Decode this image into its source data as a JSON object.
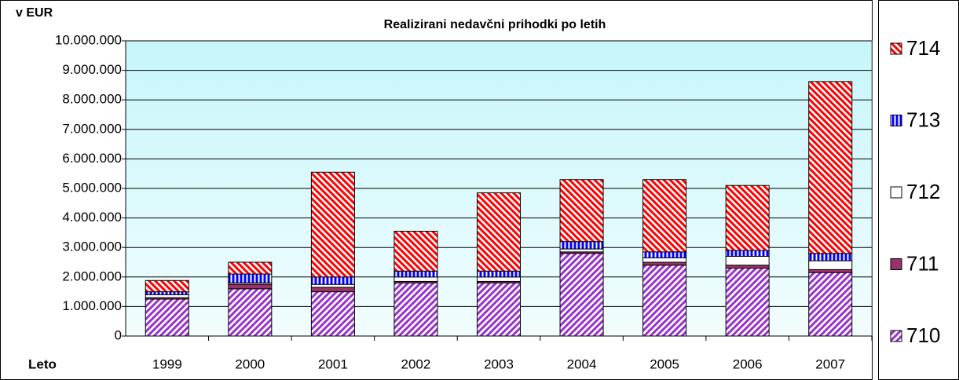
{
  "chart_data": {
    "type": "stacked-bar",
    "title": "Realizirani nedavčni prihodki po letih",
    "y_label": "v EUR",
    "x_label": "Leto",
    "categories": [
      "1999",
      "2000",
      "2001",
      "2002",
      "2003",
      "2004",
      "2005",
      "2006",
      "2007"
    ],
    "series": [
      {
        "name": "710",
        "color": "#9933cc",
        "pattern": "diagonal-up",
        "values": [
          1250000,
          1600000,
          1500000,
          1800000,
          1800000,
          2800000,
          2400000,
          2300000,
          2150000
        ]
      },
      {
        "name": "711",
        "color": "#993366",
        "pattern": "solid",
        "values": [
          50000,
          150000,
          150000,
          50000,
          50000,
          50000,
          100000,
          100000,
          100000
        ]
      },
      {
        "name": "712",
        "color": "#ffffff",
        "pattern": "solid",
        "values": [
          100000,
          50000,
          100000,
          150000,
          150000,
          100000,
          150000,
          300000,
          300000
        ]
      },
      {
        "name": "713",
        "color": "#0000ff",
        "pattern": "vertical",
        "values": [
          100000,
          300000,
          250000,
          200000,
          200000,
          250000,
          200000,
          200000,
          250000
        ]
      },
      {
        "name": "714",
        "color": "#ff0000",
        "pattern": "diagonal-down",
        "values": [
          380000,
          400000,
          3550000,
          1350000,
          2650000,
          2100000,
          2450000,
          2200000,
          5820000
        ]
      }
    ],
    "ylim": [
      0,
      10000000
    ],
    "yticks": [
      0,
      {
        "value": 1000000,
        "label": "1.000.000"
      },
      {
        "value": 2000000,
        "label": "2.000.000"
      },
      {
        "value": 3000000,
        "label": "3.000.000"
      },
      {
        "value": 4000000,
        "label": "4.000.000"
      },
      {
        "value": 5000000,
        "label": "5.000.000"
      },
      {
        "value": 6000000,
        "label": "6.000.000"
      },
      {
        "value": 7000000,
        "label": "7.000.000"
      },
      {
        "value": 8000000,
        "label": "8.000.000"
      },
      {
        "value": 9000000,
        "label": "9.000.000"
      },
      {
        "value": 10000000,
        "label": "10.000.000"
      }
    ],
    "grid": true,
    "legend": "right"
  }
}
